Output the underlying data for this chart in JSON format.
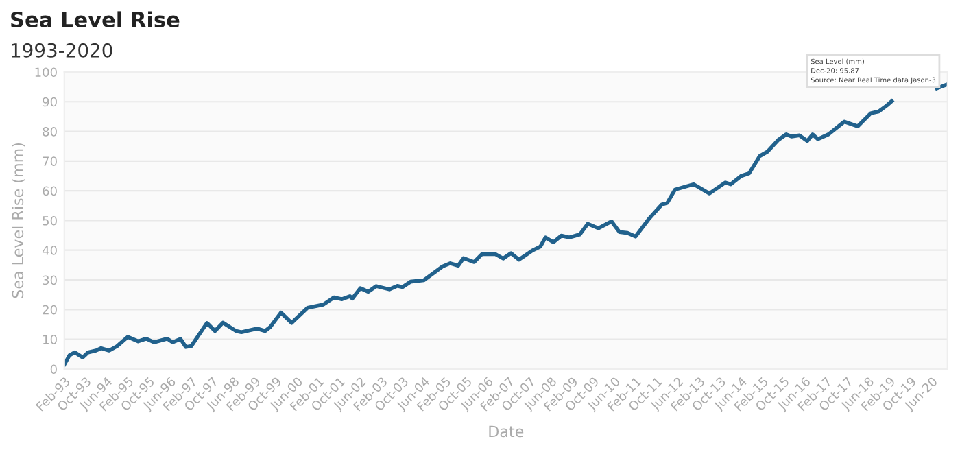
{
  "chart_data": {
    "type": "line",
    "title": "Sea Level Rise",
    "subtitle": "1993-2020",
    "xlabel": "Date",
    "ylabel": "Sea Level Rise (mm)",
    "annotations": [
      "Sea Level (mm)",
      "Dec-20: 95.87",
      "Source: Near Real Time data Jason-3"
    ],
    "x": [
      "1993-02",
      "1993-04",
      "1993-06",
      "1993-09",
      "1993-11",
      "1994-02",
      "1994-04",
      "1994-07",
      "1994-10",
      "1995-02",
      "1995-06",
      "1995-09",
      "1995-12",
      "1996-05",
      "1996-07",
      "1996-10",
      "1996-12",
      "1997-02",
      "1997-08",
      "1997-11",
      "1998-02",
      "1998-07",
      "1998-09",
      "1999-03",
      "1999-06",
      "1999-08",
      "1999-12",
      "2000-04",
      "2000-10",
      "2001-04",
      "2001-08",
      "2001-11",
      "2002-02",
      "2002-03",
      "2002-06",
      "2002-09",
      "2002-12",
      "2003-05",
      "2003-08",
      "2003-10",
      "2004-01",
      "2004-06",
      "2005-01",
      "2005-04",
      "2005-07",
      "2005-09",
      "2006-01",
      "2006-04",
      "2006-09",
      "2006-12",
      "2007-03",
      "2007-06",
      "2007-11",
      "2008-02",
      "2008-04",
      "2008-07",
      "2008-10",
      "2009-01",
      "2009-05",
      "2009-08",
      "2009-12",
      "2010-05",
      "2010-08",
      "2010-11",
      "2011-02",
      "2011-07",
      "2011-12",
      "2012-02",
      "2012-05",
      "2012-12",
      "2013-06",
      "2013-12",
      "2014-02",
      "2014-06",
      "2014-09",
      "2015-01",
      "2015-04",
      "2015-08",
      "2015-11",
      "2016-01",
      "2016-04",
      "2016-07",
      "2016-09",
      "2016-11",
      "2017-03",
      "2017-09",
      "2018-02",
      "2018-07",
      "2018-10",
      "2019-01",
      "2019-03",
      "2019-10",
      "2020-08",
      "2020-12"
    ],
    "series": [
      {
        "color": "#21618c",
        "values": [
          1.5,
          4.6,
          5.6,
          3.9,
          5.6,
          6.2,
          7.0,
          6.2,
          7.7,
          10.8,
          9.3,
          10.2,
          9.0,
          10.2,
          9.0,
          10.1,
          7.4,
          7.7,
          15.5,
          12.8,
          15.6,
          12.8,
          12.4,
          13.6,
          12.8,
          14.2,
          19.0,
          15.5,
          20.6,
          21.7,
          24.1,
          23.5,
          24.5,
          23.7,
          27.2,
          26.0,
          27.9,
          26.8,
          28.0,
          27.6,
          29.4,
          29.9,
          34.5,
          35.6,
          34.8,
          37.3,
          36.0,
          38.7,
          38.7,
          37.2,
          39.0,
          36.8,
          39.9,
          41.2,
          44.3,
          42.7,
          44.9,
          44.3,
          45.3,
          48.9,
          47.4,
          49.7,
          46.1,
          45.8,
          44.6,
          50.4,
          55.4,
          55.9,
          60.4,
          62.2,
          59.1,
          62.8,
          62.2,
          65.0,
          65.9,
          71.7,
          73.2,
          77.1,
          79.0,
          78.3,
          78.7,
          76.8,
          79.0,
          77.4,
          79.0,
          83.3,
          81.7,
          86.1,
          86.7,
          88.7,
          90.2,
          null,
          94.5,
          95.87
        ]
      }
    ],
    "xlim": [
      "1993-02",
      "2020-12"
    ],
    "ylim": [
      0,
      100
    ],
    "yticks": [
      0,
      10,
      20,
      30,
      40,
      50,
      60,
      70,
      80,
      90,
      100
    ],
    "xticks": [
      {
        "value": "1993-02",
        "label": "Feb-93"
      },
      {
        "value": "1993-10",
        "label": "Oct-93"
      },
      {
        "value": "1994-06",
        "label": "Jun-94"
      },
      {
        "value": "1995-02",
        "label": "Feb-95"
      },
      {
        "value": "1995-10",
        "label": "Oct-95"
      },
      {
        "value": "1996-06",
        "label": "Jun-96"
      },
      {
        "value": "1997-02",
        "label": "Feb-97"
      },
      {
        "value": "1997-10",
        "label": "Oct-97"
      },
      {
        "value": "1998-06",
        "label": "Jun-98"
      },
      {
        "value": "1999-02",
        "label": "Feb-99"
      },
      {
        "value": "1999-10",
        "label": "Oct-99"
      },
      {
        "value": "2000-06",
        "label": "Jun-00"
      },
      {
        "value": "2001-02",
        "label": "Feb-01"
      },
      {
        "value": "2001-10",
        "label": "Oct-01"
      },
      {
        "value": "2002-06",
        "label": "Jun-02"
      },
      {
        "value": "2003-02",
        "label": "Feb-03"
      },
      {
        "value": "2003-10",
        "label": "Oct-03"
      },
      {
        "value": "2004-06",
        "label": "Jun-04"
      },
      {
        "value": "2005-02",
        "label": "Feb-05"
      },
      {
        "value": "2005-10",
        "label": "Oct-05"
      },
      {
        "value": "2006-06",
        "label": "Jun-06"
      },
      {
        "value": "2007-02",
        "label": "Feb-07"
      },
      {
        "value": "2007-10",
        "label": "Oct-07"
      },
      {
        "value": "2008-06",
        "label": "Jun-08"
      },
      {
        "value": "2009-02",
        "label": "Feb-09"
      },
      {
        "value": "2009-10",
        "label": "Oct-09"
      },
      {
        "value": "2010-06",
        "label": "Jun-10"
      },
      {
        "value": "2011-02",
        "label": "Feb-11"
      },
      {
        "value": "2011-10",
        "label": "Oct-11"
      },
      {
        "value": "2012-06",
        "label": "Jun-12"
      },
      {
        "value": "2013-02",
        "label": "Feb-13"
      },
      {
        "value": "2013-10",
        "label": "Oct-13"
      },
      {
        "value": "2014-06",
        "label": "Jun-14"
      },
      {
        "value": "2015-02",
        "label": "Feb-15"
      },
      {
        "value": "2015-10",
        "label": "Oct-15"
      },
      {
        "value": "2016-06",
        "label": "Jun-16"
      },
      {
        "value": "2017-02",
        "label": "Feb-17"
      },
      {
        "value": "2017-10",
        "label": "Oct-17"
      },
      {
        "value": "2018-06",
        "label": "Jun-18"
      },
      {
        "value": "2019-02",
        "label": "Feb-19"
      },
      {
        "value": "2019-10",
        "label": "Oct-19"
      },
      {
        "value": "2020-06",
        "label": "Jun-20"
      }
    ],
    "grid": "y",
    "marker": "none",
    "line_style": "solid"
  }
}
